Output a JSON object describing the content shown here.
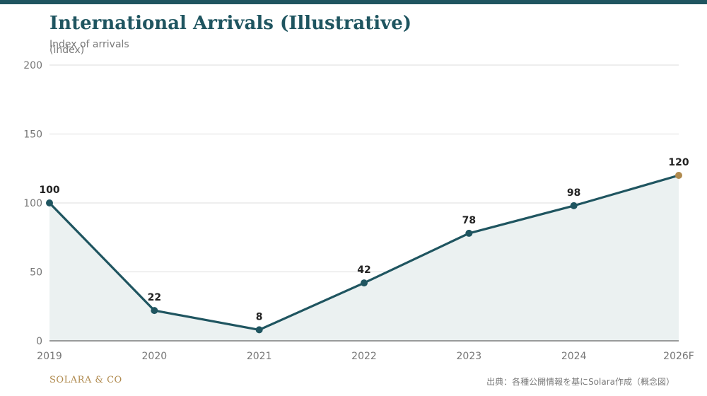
{
  "header": {
    "title": "International Arrivals (Illustrative)",
    "subtitle": "Index of arrivals",
    "unit": "(index)"
  },
  "footer": {
    "brand": "SOLARA & CO",
    "source": "出典：各種公開情報を基にSolara作成（概念図）"
  },
  "colors": {
    "line": "#1f5560",
    "area": "#ebf1f1",
    "forecast_point": "#b08a4e",
    "grid": "#dddddd",
    "axis": "#666666",
    "tick_text": "#777777",
    "label_text": "#222222"
  },
  "chart_data": {
    "type": "line",
    "title": "International Arrivals (Illustrative)",
    "subtitle": "Index of arrivals",
    "ylabel": "(index)",
    "xlabel": "",
    "categories": [
      "2019",
      "2020",
      "2021",
      "2022",
      "2023",
      "2024",
      "2026F"
    ],
    "series": [
      {
        "values": [
          100,
          22,
          8,
          42,
          78,
          98,
          120
        ]
      }
    ],
    "data_labels": [
      "100",
      "22",
      "8",
      "42",
      "78",
      "98",
      "120"
    ],
    "forecast_index": 6,
    "yticks": [
      0,
      50,
      100,
      150,
      200
    ],
    "ylim": [
      0,
      200
    ],
    "grid": true,
    "area_fill": true
  }
}
